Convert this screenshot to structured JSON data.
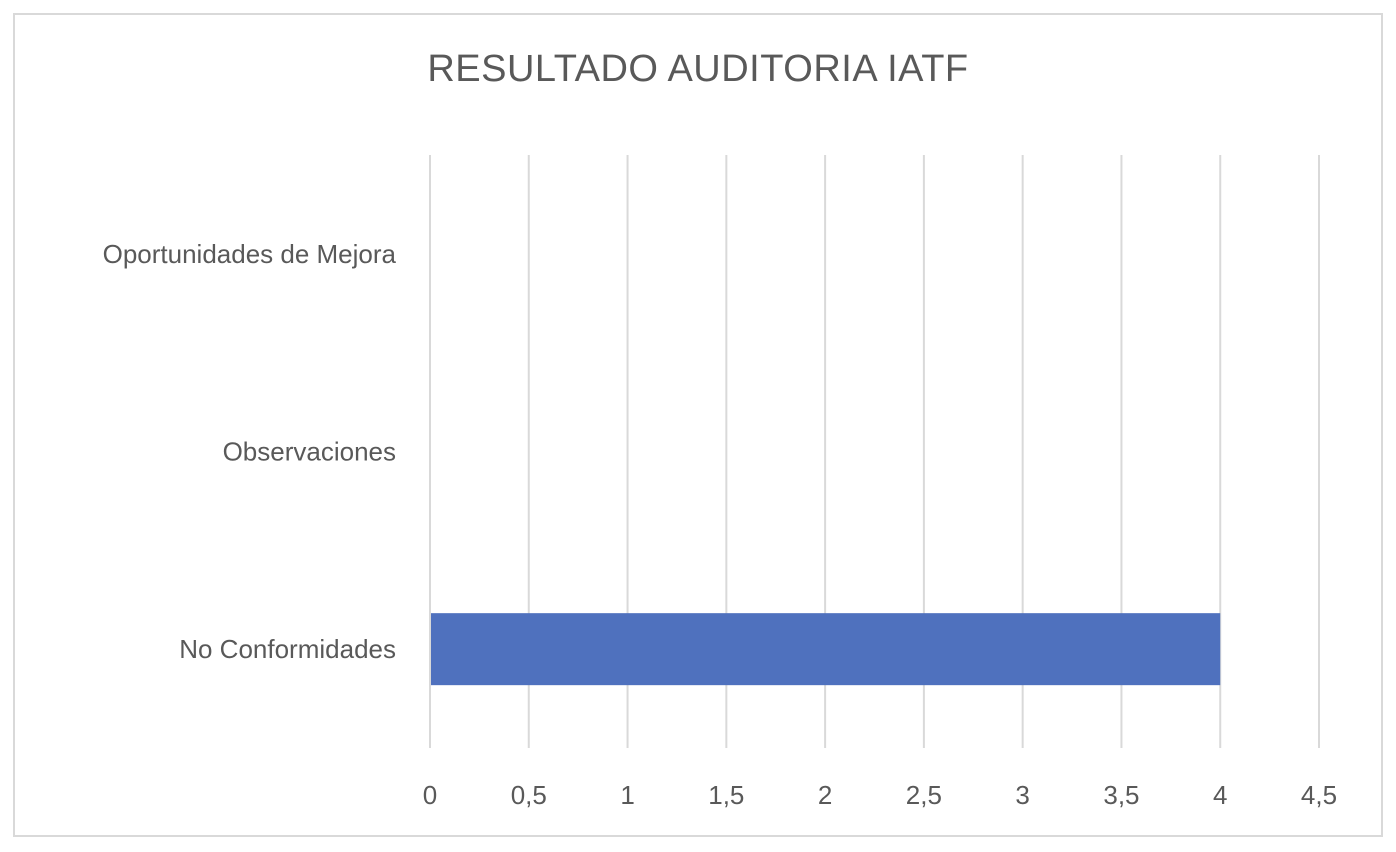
{
  "chart_data": {
    "type": "bar",
    "orientation": "horizontal",
    "title": "RESULTADO AUDITORIA IATF",
    "categories": [
      "Oportunidades de Mejora",
      "Observaciones",
      "No Conformidades"
    ],
    "values": [
      0,
      0,
      4
    ],
    "xlim": [
      0,
      4.5
    ],
    "xticks": [
      "0",
      "0,5",
      "1",
      "1,5",
      "2",
      "2,5",
      "3",
      "3,5",
      "4",
      "4,5"
    ],
    "xlabel": "",
    "ylabel": "",
    "grid": "vertical",
    "legend": "none",
    "colors": {
      "bar": "#4f71be",
      "grid": "#d9d9d9",
      "text": "#595959"
    }
  }
}
